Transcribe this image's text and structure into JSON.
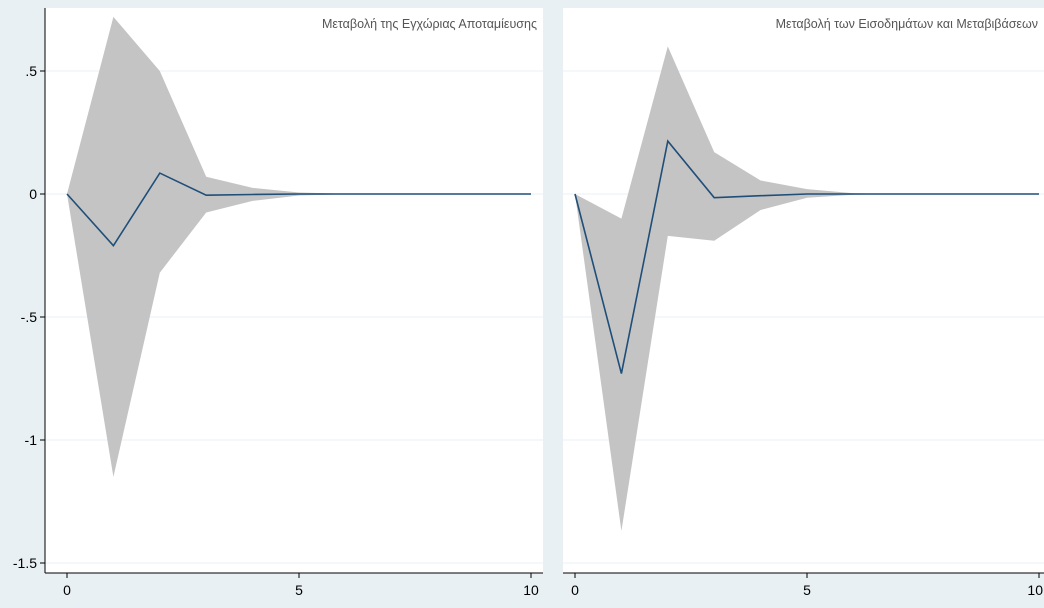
{
  "colors": {
    "outer_background": "#e8f0f3",
    "plot_background": "#ffffff",
    "band_fill": "#c4c4c4",
    "line_color": "#1f4e79",
    "grid_color": "#eaf1f4",
    "axis_color": "#000000",
    "title_color": "#555555"
  },
  "chart_data": [
    {
      "type": "area",
      "title": "Μεταβολή της Εγχώριας Αποταμίευσης",
      "xlabel": "",
      "ylabel": "",
      "xlim": [
        0,
        10
      ],
      "ylim": [
        -1.55,
        0.75
      ],
      "grid": true,
      "x": [
        0,
        1,
        2,
        3,
        4,
        5,
        6,
        7,
        8,
        9,
        10
      ],
      "series": [
        {
          "role": "estimate",
          "values": [
            0,
            -0.21,
            0.085,
            -0.005,
            -0.002,
            0.0,
            0.0,
            0.0,
            0.0,
            0.0,
            0.0
          ]
        },
        {
          "role": "upper",
          "values": [
            0,
            0.72,
            0.5,
            0.07,
            0.025,
            0.006,
            0.001,
            0.0,
            0.0,
            0.0,
            0.0
          ]
        },
        {
          "role": "lower",
          "values": [
            0,
            -1.15,
            -0.32,
            -0.075,
            -0.028,
            -0.006,
            -0.001,
            0.0,
            0.0,
            0.0,
            0.0
          ]
        }
      ],
      "x_ticks": [
        {
          "value": 0,
          "label": "0"
        },
        {
          "value": 5,
          "label": "5"
        },
        {
          "value": 10,
          "label": "10"
        }
      ],
      "y_ticks": [
        {
          "value": 0.5,
          "label": ".5"
        },
        {
          "value": 0,
          "label": "0"
        },
        {
          "value": -0.5,
          "label": "-.5"
        },
        {
          "value": -1,
          "label": "-1"
        },
        {
          "value": -1.5,
          "label": "-1.5"
        }
      ]
    },
    {
      "type": "area",
      "title": "Μεταβολή των Εισοδημάτων και Μεταβιβάσεων",
      "xlabel": "",
      "ylabel": "",
      "xlim": [
        0,
        10
      ],
      "ylim": [
        -1.55,
        0.75
      ],
      "grid": true,
      "x": [
        0,
        1,
        2,
        3,
        4,
        5,
        6,
        7,
        8,
        9,
        10
      ],
      "series": [
        {
          "role": "estimate",
          "values": [
            0,
            -0.73,
            0.215,
            -0.015,
            -0.007,
            0.0,
            0.0,
            0.0,
            0.0,
            0.0,
            0.0
          ]
        },
        {
          "role": "upper",
          "values": [
            0,
            -0.1,
            0.6,
            0.17,
            0.055,
            0.02,
            0.003,
            0.0,
            0.0,
            0.0,
            0.0
          ]
        },
        {
          "role": "lower",
          "values": [
            0,
            -1.37,
            -0.17,
            -0.19,
            -0.065,
            -0.015,
            -0.003,
            0.0,
            0.0,
            0.0,
            0.0
          ]
        }
      ],
      "x_ticks": [
        {
          "value": 0,
          "label": "0"
        },
        {
          "value": 5,
          "label": "5"
        },
        {
          "value": 10,
          "label": "10"
        }
      ],
      "y_ticks": [
        {
          "value": 0.5,
          "label": ".5"
        },
        {
          "value": 0,
          "label": "0"
        },
        {
          "value": -0.5,
          "label": "-.5"
        },
        {
          "value": -1,
          "label": "-1"
        },
        {
          "value": -1.5,
          "label": "-1.5"
        }
      ]
    }
  ]
}
